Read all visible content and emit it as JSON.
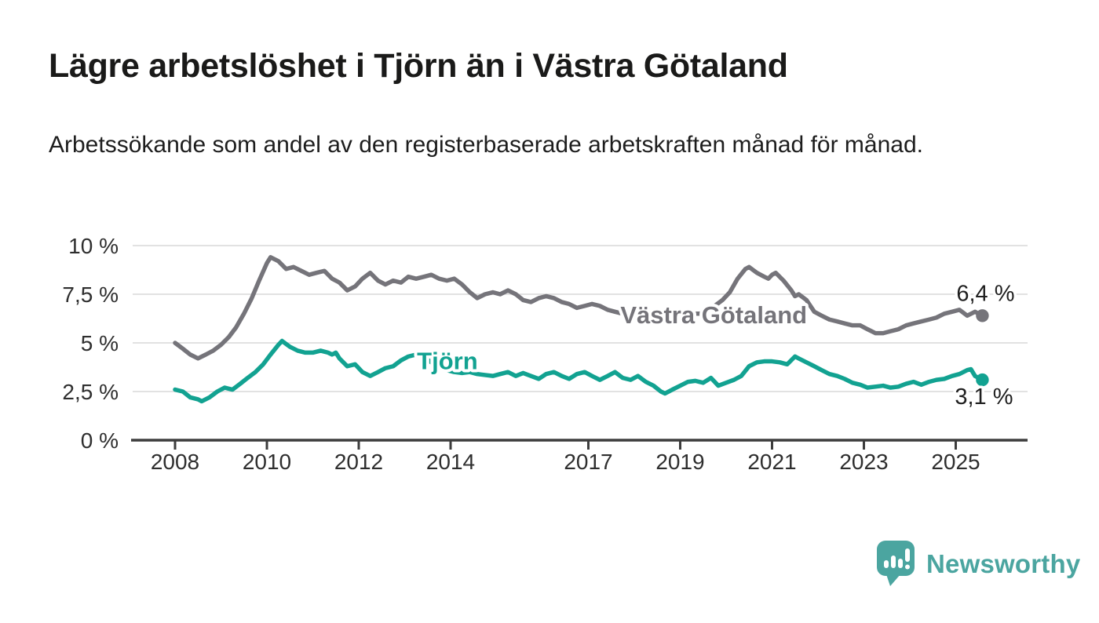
{
  "header": {
    "title": "Lägre arbetslöshet i Tjörn än i Västra Götaland",
    "subtitle": "Arbetssökande som andel av den registerbaserade arbetskraften månad för månad."
  },
  "chart_data": {
    "type": "line",
    "title": "Lägre arbetslöshet i Tjörn än i Västra Götaland",
    "subtitle": "Arbetssökande som andel av den registerbaserade arbetskraften månad för månad.",
    "grid": true,
    "legend_position": "inline-labels",
    "xlim": [
      2007.05,
      2026.55
    ],
    "ylim": [
      0,
      10.5
    ],
    "x_ticks": [
      {
        "value": 2008,
        "label": "2008"
      },
      {
        "value": 2010,
        "label": "2010"
      },
      {
        "value": 2012,
        "label": "2012"
      },
      {
        "value": 2014,
        "label": "2014"
      },
      {
        "value": 2017,
        "label": "2017"
      },
      {
        "value": 2019,
        "label": "2019"
      },
      {
        "value": 2021,
        "label": "2021"
      },
      {
        "value": 2023,
        "label": "2023"
      },
      {
        "value": 2025,
        "label": "2025"
      }
    ],
    "y_ticks": [
      {
        "value": 0,
        "label": "0 %"
      },
      {
        "value": 2.5,
        "label": "2,5 %"
      },
      {
        "value": 5,
        "label": "5 %"
      },
      {
        "value": 7.5,
        "label": "7,5 %"
      },
      {
        "value": 10,
        "label": "10 %"
      }
    ],
    "colors": {
      "vastra_gotaland": "#75747A",
      "tjorn": "#12A291",
      "gridline": "#D8D8D8",
      "axis": "#3D3D3D",
      "text": "#1F1F1F"
    },
    "series": [
      {
        "name": "Västra Götaland",
        "color": "#75747A",
        "end_label": "6,4 %",
        "end_value": 6.4,
        "label_anchor": {
          "x": 2019.73,
          "y": 6.45
        },
        "points": [
          [
            2008.0,
            5.0
          ],
          [
            2008.17,
            4.7
          ],
          [
            2008.33,
            4.4
          ],
          [
            2008.5,
            4.2
          ],
          [
            2008.67,
            4.4
          ],
          [
            2008.83,
            4.6
          ],
          [
            2009.0,
            4.9
          ],
          [
            2009.17,
            5.3
          ],
          [
            2009.33,
            5.8
          ],
          [
            2009.5,
            6.5
          ],
          [
            2009.67,
            7.3
          ],
          [
            2009.83,
            8.2
          ],
          [
            2010.0,
            9.1
          ],
          [
            2010.08,
            9.4
          ],
          [
            2010.25,
            9.2
          ],
          [
            2010.42,
            8.8
          ],
          [
            2010.58,
            8.9
          ],
          [
            2010.75,
            8.7
          ],
          [
            2010.92,
            8.5
          ],
          [
            2011.08,
            8.6
          ],
          [
            2011.25,
            8.7
          ],
          [
            2011.42,
            8.3
          ],
          [
            2011.58,
            8.1
          ],
          [
            2011.75,
            7.7
          ],
          [
            2011.92,
            7.9
          ],
          [
            2012.08,
            8.3
          ],
          [
            2012.25,
            8.6
          ],
          [
            2012.42,
            8.2
          ],
          [
            2012.58,
            8.0
          ],
          [
            2012.75,
            8.2
          ],
          [
            2012.92,
            8.1
          ],
          [
            2013.08,
            8.4
          ],
          [
            2013.25,
            8.3
          ],
          [
            2013.42,
            8.4
          ],
          [
            2013.58,
            8.5
          ],
          [
            2013.75,
            8.3
          ],
          [
            2013.92,
            8.2
          ],
          [
            2014.08,
            8.3
          ],
          [
            2014.25,
            8.0
          ],
          [
            2014.42,
            7.6
          ],
          [
            2014.58,
            7.3
          ],
          [
            2014.75,
            7.5
          ],
          [
            2014.92,
            7.6
          ],
          [
            2015.08,
            7.5
          ],
          [
            2015.25,
            7.7
          ],
          [
            2015.42,
            7.5
          ],
          [
            2015.58,
            7.2
          ],
          [
            2015.75,
            7.1
          ],
          [
            2015.92,
            7.3
          ],
          [
            2016.08,
            7.4
          ],
          [
            2016.25,
            7.3
          ],
          [
            2016.42,
            7.1
          ],
          [
            2016.58,
            7.0
          ],
          [
            2016.75,
            6.8
          ],
          [
            2016.92,
            6.9
          ],
          [
            2017.08,
            7.0
          ],
          [
            2017.25,
            6.9
          ],
          [
            2017.42,
            6.7
          ],
          [
            2017.58,
            6.6
          ],
          [
            2017.75,
            6.5
          ],
          [
            2017.92,
            6.4
          ],
          [
            2018.08,
            6.5
          ],
          [
            2018.25,
            6.4
          ],
          [
            2018.42,
            6.3
          ],
          [
            2018.58,
            6.4
          ],
          [
            2018.75,
            6.4
          ],
          [
            2018.92,
            6.3
          ],
          [
            2019.08,
            6.4
          ],
          [
            2019.25,
            6.5
          ],
          [
            2019.42,
            6.5
          ],
          [
            2019.58,
            6.6
          ],
          [
            2019.75,
            6.9
          ],
          [
            2019.92,
            7.2
          ],
          [
            2020.08,
            7.6
          ],
          [
            2020.25,
            8.3
          ],
          [
            2020.42,
            8.8
          ],
          [
            2020.5,
            8.9
          ],
          [
            2020.67,
            8.6
          ],
          [
            2020.83,
            8.4
          ],
          [
            2020.92,
            8.3
          ],
          [
            2021.0,
            8.5
          ],
          [
            2021.08,
            8.6
          ],
          [
            2021.25,
            8.2
          ],
          [
            2021.42,
            7.7
          ],
          [
            2021.5,
            7.4
          ],
          [
            2021.58,
            7.5
          ],
          [
            2021.75,
            7.2
          ],
          [
            2021.92,
            6.6
          ],
          [
            2022.08,
            6.4
          ],
          [
            2022.25,
            6.2
          ],
          [
            2022.42,
            6.1
          ],
          [
            2022.58,
            6.0
          ],
          [
            2022.75,
            5.9
          ],
          [
            2022.92,
            5.9
          ],
          [
            2023.08,
            5.7
          ],
          [
            2023.25,
            5.5
          ],
          [
            2023.42,
            5.5
          ],
          [
            2023.58,
            5.6
          ],
          [
            2023.75,
            5.7
          ],
          [
            2023.92,
            5.9
          ],
          [
            2024.08,
            6.0
          ],
          [
            2024.25,
            6.1
          ],
          [
            2024.42,
            6.2
          ],
          [
            2024.58,
            6.3
          ],
          [
            2024.75,
            6.5
          ],
          [
            2024.92,
            6.6
          ],
          [
            2025.08,
            6.7
          ],
          [
            2025.25,
            6.4
          ],
          [
            2025.42,
            6.6
          ],
          [
            2025.58,
            6.4
          ]
        ]
      },
      {
        "name": "Tjörn",
        "color": "#12A291",
        "end_label": "3,1 %",
        "end_value": 3.1,
        "label_anchor": {
          "x": 2013.93,
          "y": 4.1
        },
        "points": [
          [
            2008.0,
            2.6
          ],
          [
            2008.17,
            2.5
          ],
          [
            2008.33,
            2.2
          ],
          [
            2008.5,
            2.1
          ],
          [
            2008.58,
            2.0
          ],
          [
            2008.75,
            2.2
          ],
          [
            2008.92,
            2.5
          ],
          [
            2009.08,
            2.7
          ],
          [
            2009.25,
            2.6
          ],
          [
            2009.42,
            2.9
          ],
          [
            2009.58,
            3.2
          ],
          [
            2009.75,
            3.5
          ],
          [
            2009.92,
            3.9
          ],
          [
            2010.08,
            4.4
          ],
          [
            2010.25,
            4.9
          ],
          [
            2010.33,
            5.1
          ],
          [
            2010.5,
            4.8
          ],
          [
            2010.67,
            4.6
          ],
          [
            2010.83,
            4.5
          ],
          [
            2011.0,
            4.5
          ],
          [
            2011.17,
            4.6
          ],
          [
            2011.33,
            4.5
          ],
          [
            2011.42,
            4.4
          ],
          [
            2011.5,
            4.5
          ],
          [
            2011.58,
            4.2
          ],
          [
            2011.75,
            3.8
          ],
          [
            2011.92,
            3.9
          ],
          [
            2012.08,
            3.5
          ],
          [
            2012.25,
            3.3
          ],
          [
            2012.42,
            3.5
          ],
          [
            2012.58,
            3.7
          ],
          [
            2012.75,
            3.8
          ],
          [
            2012.92,
            4.1
          ],
          [
            2013.08,
            4.3
          ],
          [
            2013.25,
            4.4
          ],
          [
            2013.42,
            4.3
          ],
          [
            2013.58,
            4.0
          ],
          [
            2013.75,
            3.8
          ],
          [
            2013.92,
            3.6
          ],
          [
            2014.08,
            3.5
          ],
          [
            2014.25,
            3.45
          ],
          [
            2014.42,
            3.5
          ],
          [
            2014.58,
            3.4
          ],
          [
            2014.75,
            3.35
          ],
          [
            2014.92,
            3.3
          ],
          [
            2015.08,
            3.4
          ],
          [
            2015.25,
            3.5
          ],
          [
            2015.42,
            3.3
          ],
          [
            2015.58,
            3.45
          ],
          [
            2015.75,
            3.3
          ],
          [
            2015.92,
            3.15
          ],
          [
            2016.08,
            3.4
          ],
          [
            2016.25,
            3.5
          ],
          [
            2016.42,
            3.3
          ],
          [
            2016.58,
            3.15
          ],
          [
            2016.75,
            3.4
          ],
          [
            2016.92,
            3.5
          ],
          [
            2017.08,
            3.3
          ],
          [
            2017.25,
            3.1
          ],
          [
            2017.42,
            3.3
          ],
          [
            2017.58,
            3.5
          ],
          [
            2017.75,
            3.2
          ],
          [
            2017.92,
            3.1
          ],
          [
            2018.08,
            3.3
          ],
          [
            2018.25,
            3.0
          ],
          [
            2018.42,
            2.8
          ],
          [
            2018.58,
            2.5
          ],
          [
            2018.67,
            2.4
          ],
          [
            2018.83,
            2.6
          ],
          [
            2019.0,
            2.8
          ],
          [
            2019.17,
            3.0
          ],
          [
            2019.33,
            3.05
          ],
          [
            2019.5,
            2.95
          ],
          [
            2019.67,
            3.2
          ],
          [
            2019.83,
            2.8
          ],
          [
            2020.0,
            2.95
          ],
          [
            2020.17,
            3.1
          ],
          [
            2020.33,
            3.3
          ],
          [
            2020.5,
            3.8
          ],
          [
            2020.67,
            4.0
          ],
          [
            2020.83,
            4.05
          ],
          [
            2021.0,
            4.05
          ],
          [
            2021.17,
            4.0
          ],
          [
            2021.33,
            3.9
          ],
          [
            2021.5,
            4.3
          ],
          [
            2021.58,
            4.2
          ],
          [
            2021.75,
            4.0
          ],
          [
            2021.92,
            3.8
          ],
          [
            2022.08,
            3.6
          ],
          [
            2022.25,
            3.4
          ],
          [
            2022.42,
            3.3
          ],
          [
            2022.58,
            3.15
          ],
          [
            2022.75,
            2.95
          ],
          [
            2022.92,
            2.85
          ],
          [
            2023.08,
            2.7
          ],
          [
            2023.25,
            2.75
          ],
          [
            2023.42,
            2.8
          ],
          [
            2023.58,
            2.7
          ],
          [
            2023.75,
            2.75
          ],
          [
            2023.92,
            2.9
          ],
          [
            2024.08,
            3.0
          ],
          [
            2024.25,
            2.85
          ],
          [
            2024.42,
            3.0
          ],
          [
            2024.58,
            3.1
          ],
          [
            2024.75,
            3.15
          ],
          [
            2024.92,
            3.3
          ],
          [
            2025.08,
            3.4
          ],
          [
            2025.25,
            3.6
          ],
          [
            2025.33,
            3.65
          ],
          [
            2025.42,
            3.3
          ],
          [
            2025.5,
            3.2
          ],
          [
            2025.58,
            3.1
          ]
        ]
      }
    ]
  },
  "footer": {
    "brand": "Newsworthy",
    "brand_color": "#4BA5A0"
  }
}
